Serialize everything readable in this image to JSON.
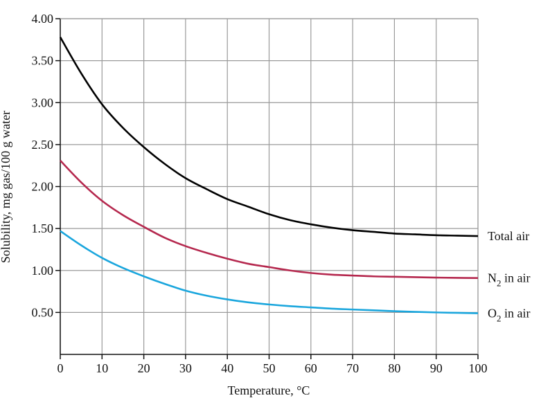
{
  "chart_data": {
    "type": "line",
    "title": "",
    "xlabel": "Temperature, °C",
    "ylabel": "Solubility, mg gas/100 g water",
    "xlim": [
      0,
      100
    ],
    "ylim": [
      0,
      4.0
    ],
    "xticks": [
      0,
      10,
      20,
      30,
      40,
      50,
      60,
      70,
      80,
      90,
      100
    ],
    "xtick_labels": [
      "0",
      "10",
      "20",
      "30",
      "40",
      "50",
      "60",
      "70",
      "80",
      "90",
      "100"
    ],
    "yticks": [
      0.5,
      1.0,
      1.5,
      2.0,
      2.5,
      3.0,
      3.5,
      4.0
    ],
    "ytick_labels": [
      "0.50",
      "1.00",
      "1.50",
      "2.00",
      "2.50",
      "3.00",
      "3.50",
      "4.00"
    ],
    "grid": true,
    "series": [
      {
        "name": "Total air",
        "label_main": "Total air",
        "label_sub": "",
        "label_tail": "",
        "color": "#000000",
        "x": [
          0,
          5,
          10,
          15,
          20,
          25,
          30,
          35,
          40,
          45,
          50,
          55,
          60,
          65,
          70,
          75,
          80,
          85,
          90,
          95,
          100
        ],
        "y": [
          3.78,
          3.35,
          2.98,
          2.7,
          2.47,
          2.27,
          2.1,
          1.97,
          1.85,
          1.76,
          1.67,
          1.6,
          1.55,
          1.51,
          1.48,
          1.46,
          1.44,
          1.43,
          1.42,
          1.415,
          1.41
        ]
      },
      {
        "name": "N2 in air",
        "label_main": "N",
        "label_sub": "2",
        "label_tail": " in air",
        "color": "#b5284e",
        "x": [
          0,
          5,
          10,
          15,
          20,
          25,
          30,
          35,
          40,
          45,
          50,
          55,
          60,
          65,
          70,
          75,
          80,
          85,
          90,
          95,
          100
        ],
        "y": [
          2.31,
          2.05,
          1.83,
          1.66,
          1.52,
          1.39,
          1.29,
          1.21,
          1.14,
          1.08,
          1.04,
          1.0,
          0.97,
          0.95,
          0.94,
          0.93,
          0.925,
          0.92,
          0.915,
          0.912,
          0.91
        ]
      },
      {
        "name": "O2 in air",
        "label_main": "O",
        "label_sub": "2",
        "label_tail": " in air",
        "color": "#1aa6dd",
        "x": [
          0,
          5,
          10,
          15,
          20,
          25,
          30,
          35,
          40,
          45,
          50,
          55,
          60,
          65,
          70,
          75,
          80,
          85,
          90,
          95,
          100
        ],
        "y": [
          1.47,
          1.3,
          1.15,
          1.03,
          0.93,
          0.84,
          0.76,
          0.7,
          0.655,
          0.62,
          0.595,
          0.575,
          0.56,
          0.545,
          0.535,
          0.525,
          0.515,
          0.507,
          0.5,
          0.495,
          0.49
        ]
      }
    ]
  }
}
